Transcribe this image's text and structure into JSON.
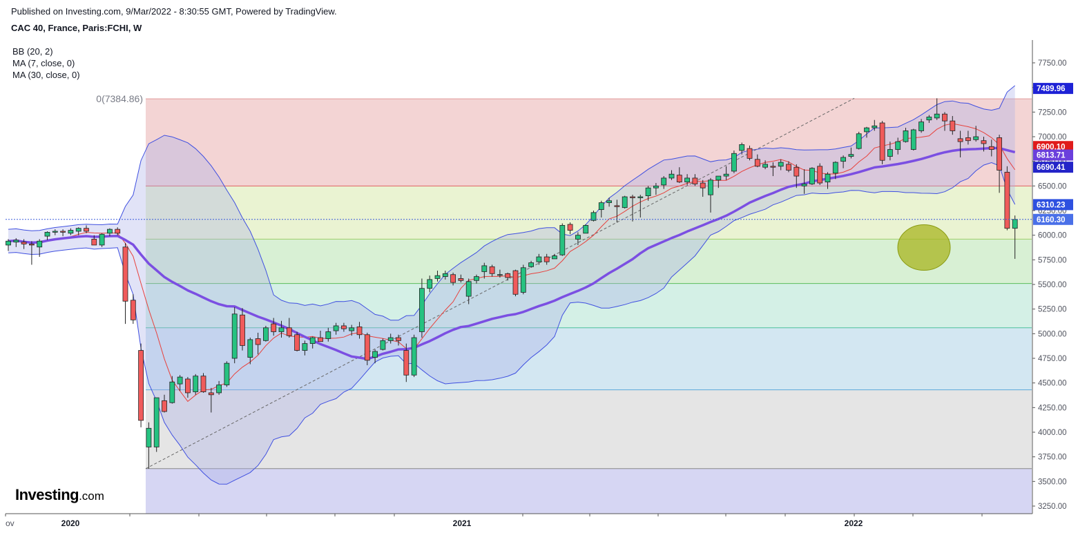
{
  "header": {
    "published": "Published on Investing.com, 9/Mar/2022 - 8:30:55 GMT, Powered by TradingView.",
    "symbol": "CAC 40, France, Paris:FCHI, W"
  },
  "legend": [
    "BB (20, 2)",
    "MA (7, close, 0)",
    "MA (30, close, 0)"
  ],
  "logo": {
    "main": "Investing",
    "suffix": ".com"
  },
  "colors": {
    "up": "#26c281",
    "down": "#f05b5b",
    "wick": "#222222",
    "bb_line": "#3f4fe0",
    "bb_fill": "#a9aee8",
    "ma7": "#e8413c",
    "ma30": "#7b4fe2"
  },
  "chart_data": {
    "type": "candlestick",
    "timeframe": "W",
    "y_axis": {
      "range": [
        3200,
        7950
      ],
      "ticks": [
        3250,
        3500,
        3750,
        4000,
        4250,
        4500,
        4750,
        5000,
        5250,
        5500,
        5750,
        6000,
        6250,
        6500,
        6750,
        7000,
        7250,
        7500,
        7750
      ],
      "tick_labels": [
        "3250.00",
        "3500.00",
        "3750.00",
        "4000.00",
        "4250.00",
        "4500.00",
        "4750.00",
        "5000.00",
        "5250.00",
        "5500.00",
        "5750.00",
        "6000.00",
        "6250.00",
        "6500.00",
        "6750.00",
        "7000.00",
        "7250.00",
        "7500.00",
        "7750.00"
      ]
    },
    "x_axis": {
      "labels": [
        "ov",
        "2020",
        "2021",
        "2022"
      ]
    },
    "fib_retracement": {
      "label": "0(7384.86)",
      "levels": [
        7384.86,
        6500,
        5960,
        5510,
        5060,
        4430,
        3630
      ],
      "fills": [
        "#f3d4d4",
        "#eaf3d2",
        "#d8f0d4",
        "#d4f0e6",
        "#d3e7f2",
        "#e5e5e5",
        "#d6d6f3"
      ],
      "lines": [
        "#e39a9a",
        "#e06060",
        "#9ed06a",
        "#5bbd5b",
        "#4bbf9c",
        "#5aa7d8",
        "#888888"
      ]
    },
    "price_tags": [
      {
        "text": "7489.96",
        "value": 7489.96,
        "color": "#1e22d6"
      },
      {
        "text": "6900.10",
        "value": 6900.1,
        "color": "#e01b1b"
      },
      {
        "text": "6813.71",
        "value": 6813.71,
        "color": "#6b3fdc"
      },
      {
        "text": "6690.41",
        "value": 6690.41,
        "color": "#2424c8"
      },
      {
        "text": "6310.23",
        "value": 6310.23,
        "color": "#2e50e0"
      },
      {
        "text": "6160.30",
        "value": 6160.3,
        "color": "#4a70e8"
      }
    ],
    "current_price": 6160.3,
    "candles": [
      {
        "o": 5900,
        "h": 5960,
        "l": 5840,
        "c": 5940
      },
      {
        "o": 5930,
        "h": 5970,
        "l": 5880,
        "c": 5950
      },
      {
        "o": 5930,
        "h": 5960,
        "l": 5860,
        "c": 5910
      },
      {
        "o": 5910,
        "h": 5940,
        "l": 5700,
        "c": 5900
      },
      {
        "o": 5880,
        "h": 5960,
        "l": 5780,
        "c": 5940
      },
      {
        "o": 5990,
        "h": 6040,
        "l": 5950,
        "c": 6030
      },
      {
        "o": 6030,
        "h": 6060,
        "l": 6000,
        "c": 6040
      },
      {
        "o": 6040,
        "h": 6060,
        "l": 5990,
        "c": 6030
      },
      {
        "o": 6020,
        "h": 6070,
        "l": 6000,
        "c": 6050
      },
      {
        "o": 6040,
        "h": 6080,
        "l": 6000,
        "c": 6070
      },
      {
        "o": 6070,
        "h": 6100,
        "l": 6020,
        "c": 6040
      },
      {
        "o": 5960,
        "h": 6000,
        "l": 5900,
        "c": 5900
      },
      {
        "o": 5900,
        "h": 6020,
        "l": 5880,
        "c": 6010
      },
      {
        "o": 6020,
        "h": 6070,
        "l": 5990,
        "c": 6060
      },
      {
        "o": 6060,
        "h": 6080,
        "l": 6000,
        "c": 6020
      },
      {
        "o": 5880,
        "h": 5920,
        "l": 5100,
        "c": 5330
      },
      {
        "o": 5340,
        "h": 5400,
        "l": 5100,
        "c": 5140
      },
      {
        "o": 4830,
        "h": 4900,
        "l": 4050,
        "c": 4120
      },
      {
        "o": 3850,
        "h": 4100,
        "l": 3630,
        "c": 4040
      },
      {
        "o": 3850,
        "h": 4350,
        "l": 3800,
        "c": 4350
      },
      {
        "o": 4320,
        "h": 4380,
        "l": 4200,
        "c": 4210
      },
      {
        "o": 4300,
        "h": 4570,
        "l": 4290,
        "c": 4510
      },
      {
        "o": 4490,
        "h": 4580,
        "l": 4420,
        "c": 4560
      },
      {
        "o": 4540,
        "h": 4560,
        "l": 4350,
        "c": 4400
      },
      {
        "o": 4410,
        "h": 4590,
        "l": 4380,
        "c": 4570
      },
      {
        "o": 4570,
        "h": 4600,
        "l": 4400,
        "c": 4410
      },
      {
        "o": 4400,
        "h": 4450,
        "l": 4200,
        "c": 4380
      },
      {
        "o": 4400,
        "h": 4520,
        "l": 4380,
        "c": 4480
      },
      {
        "o": 4480,
        "h": 4720,
        "l": 4460,
        "c": 4700
      },
      {
        "o": 4750,
        "h": 5270,
        "l": 4700,
        "c": 5200
      },
      {
        "o": 5190,
        "h": 5260,
        "l": 4830,
        "c": 4880
      },
      {
        "o": 4760,
        "h": 4960,
        "l": 4690,
        "c": 4940
      },
      {
        "o": 4950,
        "h": 5010,
        "l": 4790,
        "c": 4890
      },
      {
        "o": 4930,
        "h": 5080,
        "l": 4920,
        "c": 5060
      },
      {
        "o": 5100,
        "h": 5160,
        "l": 4980,
        "c": 5020
      },
      {
        "o": 5020,
        "h": 5130,
        "l": 4960,
        "c": 5060
      },
      {
        "o": 5060,
        "h": 5160,
        "l": 4960,
        "c": 4980
      },
      {
        "o": 4990,
        "h": 5020,
        "l": 4820,
        "c": 4830
      },
      {
        "o": 4830,
        "h": 4930,
        "l": 4780,
        "c": 4900
      },
      {
        "o": 4900,
        "h": 4970,
        "l": 4850,
        "c": 4960
      },
      {
        "o": 4960,
        "h": 5030,
        "l": 4930,
        "c": 4920
      },
      {
        "o": 4950,
        "h": 5060,
        "l": 4920,
        "c": 5020
      },
      {
        "o": 5030,
        "h": 5110,
        "l": 4990,
        "c": 5080
      },
      {
        "o": 5080,
        "h": 5110,
        "l": 5020,
        "c": 5050
      },
      {
        "o": 5030,
        "h": 5090,
        "l": 4980,
        "c": 5060
      },
      {
        "o": 5070,
        "h": 5120,
        "l": 4950,
        "c": 4990
      },
      {
        "o": 4990,
        "h": 5010,
        "l": 4680,
        "c": 4730
      },
      {
        "o": 4760,
        "h": 4840,
        "l": 4700,
        "c": 4820
      },
      {
        "o": 4840,
        "h": 4950,
        "l": 4830,
        "c": 4930
      },
      {
        "o": 4930,
        "h": 5000,
        "l": 4900,
        "c": 4960
      },
      {
        "o": 4960,
        "h": 4990,
        "l": 4880,
        "c": 4930
      },
      {
        "o": 4830,
        "h": 4900,
        "l": 4510,
        "c": 4580
      },
      {
        "o": 4580,
        "h": 4990,
        "l": 4560,
        "c": 4960
      },
      {
        "o": 5020,
        "h": 5560,
        "l": 4960,
        "c": 5460
      },
      {
        "o": 5460,
        "h": 5590,
        "l": 5420,
        "c": 5550
      },
      {
        "o": 5560,
        "h": 5640,
        "l": 5530,
        "c": 5590
      },
      {
        "o": 5580,
        "h": 5640,
        "l": 5550,
        "c": 5610
      },
      {
        "o": 5600,
        "h": 5620,
        "l": 5490,
        "c": 5520
      },
      {
        "o": 5560,
        "h": 5600,
        "l": 5520,
        "c": 5540
      },
      {
        "o": 5380,
        "h": 5560,
        "l": 5300,
        "c": 5530
      },
      {
        "o": 5540,
        "h": 5600,
        "l": 5510,
        "c": 5580
      },
      {
        "o": 5630,
        "h": 5720,
        "l": 5560,
        "c": 5690
      },
      {
        "o": 5680,
        "h": 5700,
        "l": 5580,
        "c": 5610
      },
      {
        "o": 5600,
        "h": 5650,
        "l": 5570,
        "c": 5600
      },
      {
        "o": 5610,
        "h": 5620,
        "l": 5540,
        "c": 5570
      },
      {
        "o": 5640,
        "h": 5650,
        "l": 5380,
        "c": 5400
      },
      {
        "o": 5420,
        "h": 5700,
        "l": 5400,
        "c": 5670
      },
      {
        "o": 5680,
        "h": 5740,
        "l": 5670,
        "c": 5720
      },
      {
        "o": 5730,
        "h": 5810,
        "l": 5700,
        "c": 5780
      },
      {
        "o": 5780,
        "h": 5810,
        "l": 5700,
        "c": 5730
      },
      {
        "o": 5760,
        "h": 5810,
        "l": 5760,
        "c": 5790
      },
      {
        "o": 5800,
        "h": 6120,
        "l": 5790,
        "c": 6100
      },
      {
        "o": 6110,
        "h": 6130,
        "l": 6010,
        "c": 6050
      },
      {
        "o": 5960,
        "h": 6030,
        "l": 5900,
        "c": 6000
      },
      {
        "o": 6020,
        "h": 6110,
        "l": 6020,
        "c": 6100
      },
      {
        "o": 6150,
        "h": 6250,
        "l": 6140,
        "c": 6230
      },
      {
        "o": 6260,
        "h": 6350,
        "l": 6180,
        "c": 6330
      },
      {
        "o": 6330,
        "h": 6380,
        "l": 6290,
        "c": 6350
      },
      {
        "o": 6300,
        "h": 6360,
        "l": 6130,
        "c": 6290
      },
      {
        "o": 6280,
        "h": 6400,
        "l": 6270,
        "c": 6390
      },
      {
        "o": 6390,
        "h": 6410,
        "l": 6140,
        "c": 6380
      },
      {
        "o": 6380,
        "h": 6410,
        "l": 6180,
        "c": 6390
      },
      {
        "o": 6400,
        "h": 6500,
        "l": 6350,
        "c": 6480
      },
      {
        "o": 6480,
        "h": 6530,
        "l": 6410,
        "c": 6500
      },
      {
        "o": 6510,
        "h": 6600,
        "l": 6470,
        "c": 6580
      },
      {
        "o": 6580,
        "h": 6660,
        "l": 6560,
        "c": 6620
      },
      {
        "o": 6610,
        "h": 6690,
        "l": 6530,
        "c": 6540
      },
      {
        "o": 6540,
        "h": 6620,
        "l": 6510,
        "c": 6580
      },
      {
        "o": 6580,
        "h": 6620,
        "l": 6500,
        "c": 6520
      },
      {
        "o": 6530,
        "h": 6560,
        "l": 6390,
        "c": 6480
      },
      {
        "o": 6410,
        "h": 6580,
        "l": 6230,
        "c": 6560
      },
      {
        "o": 6560,
        "h": 6600,
        "l": 6480,
        "c": 6600
      },
      {
        "o": 6600,
        "h": 6700,
        "l": 6560,
        "c": 6620
      },
      {
        "o": 6650,
        "h": 6860,
        "l": 6630,
        "c": 6830
      },
      {
        "o": 6860,
        "h": 6940,
        "l": 6820,
        "c": 6920
      },
      {
        "o": 6880,
        "h": 6910,
        "l": 6760,
        "c": 6780
      },
      {
        "o": 6770,
        "h": 6820,
        "l": 6690,
        "c": 6700
      },
      {
        "o": 6690,
        "h": 6760,
        "l": 6670,
        "c": 6720
      },
      {
        "o": 6700,
        "h": 6740,
        "l": 6600,
        "c": 6690
      },
      {
        "o": 6700,
        "h": 6770,
        "l": 6660,
        "c": 6740
      },
      {
        "o": 6720,
        "h": 6750,
        "l": 6640,
        "c": 6660
      },
      {
        "o": 6690,
        "h": 6720,
        "l": 6480,
        "c": 6600
      },
      {
        "o": 6500,
        "h": 6670,
        "l": 6420,
        "c": 6520
      },
      {
        "o": 6520,
        "h": 6690,
        "l": 6510,
        "c": 6680
      },
      {
        "o": 6700,
        "h": 6730,
        "l": 6510,
        "c": 6530
      },
      {
        "o": 6540,
        "h": 6640,
        "l": 6470,
        "c": 6620
      },
      {
        "o": 6630,
        "h": 6750,
        "l": 6570,
        "c": 6740
      },
      {
        "o": 6750,
        "h": 6810,
        "l": 6680,
        "c": 6790
      },
      {
        "o": 6800,
        "h": 6890,
        "l": 6780,
        "c": 6820
      },
      {
        "o": 6880,
        "h": 7050,
        "l": 6870,
        "c": 7030
      },
      {
        "o": 7050,
        "h": 7100,
        "l": 6990,
        "c": 7090
      },
      {
        "o": 7090,
        "h": 7170,
        "l": 7060,
        "c": 7110
      },
      {
        "o": 7140,
        "h": 7160,
        "l": 6720,
        "c": 6760
      },
      {
        "o": 6800,
        "h": 6950,
        "l": 6760,
        "c": 6870
      },
      {
        "o": 6870,
        "h": 6990,
        "l": 6820,
        "c": 6950
      },
      {
        "o": 6950,
        "h": 7090,
        "l": 6940,
        "c": 7060
      },
      {
        "o": 6870,
        "h": 7080,
        "l": 6860,
        "c": 7070
      },
      {
        "o": 7060,
        "h": 7180,
        "l": 7040,
        "c": 7150
      },
      {
        "o": 7170,
        "h": 7220,
        "l": 7140,
        "c": 7200
      },
      {
        "o": 7190,
        "h": 7390,
        "l": 7170,
        "c": 7230
      },
      {
        "o": 7230,
        "h": 7250,
        "l": 7060,
        "c": 7160
      },
      {
        "o": 7160,
        "h": 7210,
        "l": 7020,
        "c": 7060
      },
      {
        "o": 6980,
        "h": 7060,
        "l": 6790,
        "c": 6950
      },
      {
        "o": 6990,
        "h": 7060,
        "l": 6920,
        "c": 6960
      },
      {
        "o": 6970,
        "h": 7110,
        "l": 6950,
        "c": 7000
      },
      {
        "o": 6960,
        "h": 7000,
        "l": 6850,
        "c": 6930
      },
      {
        "o": 6900,
        "h": 6970,
        "l": 6800,
        "c": 6870
      },
      {
        "o": 6990,
        "h": 7020,
        "l": 6430,
        "c": 6660
      },
      {
        "o": 6640,
        "h": 6700,
        "l": 6050,
        "c": 6070
      },
      {
        "o": 6070,
        "h": 6200,
        "l": 5760,
        "c": 6160
      }
    ]
  }
}
